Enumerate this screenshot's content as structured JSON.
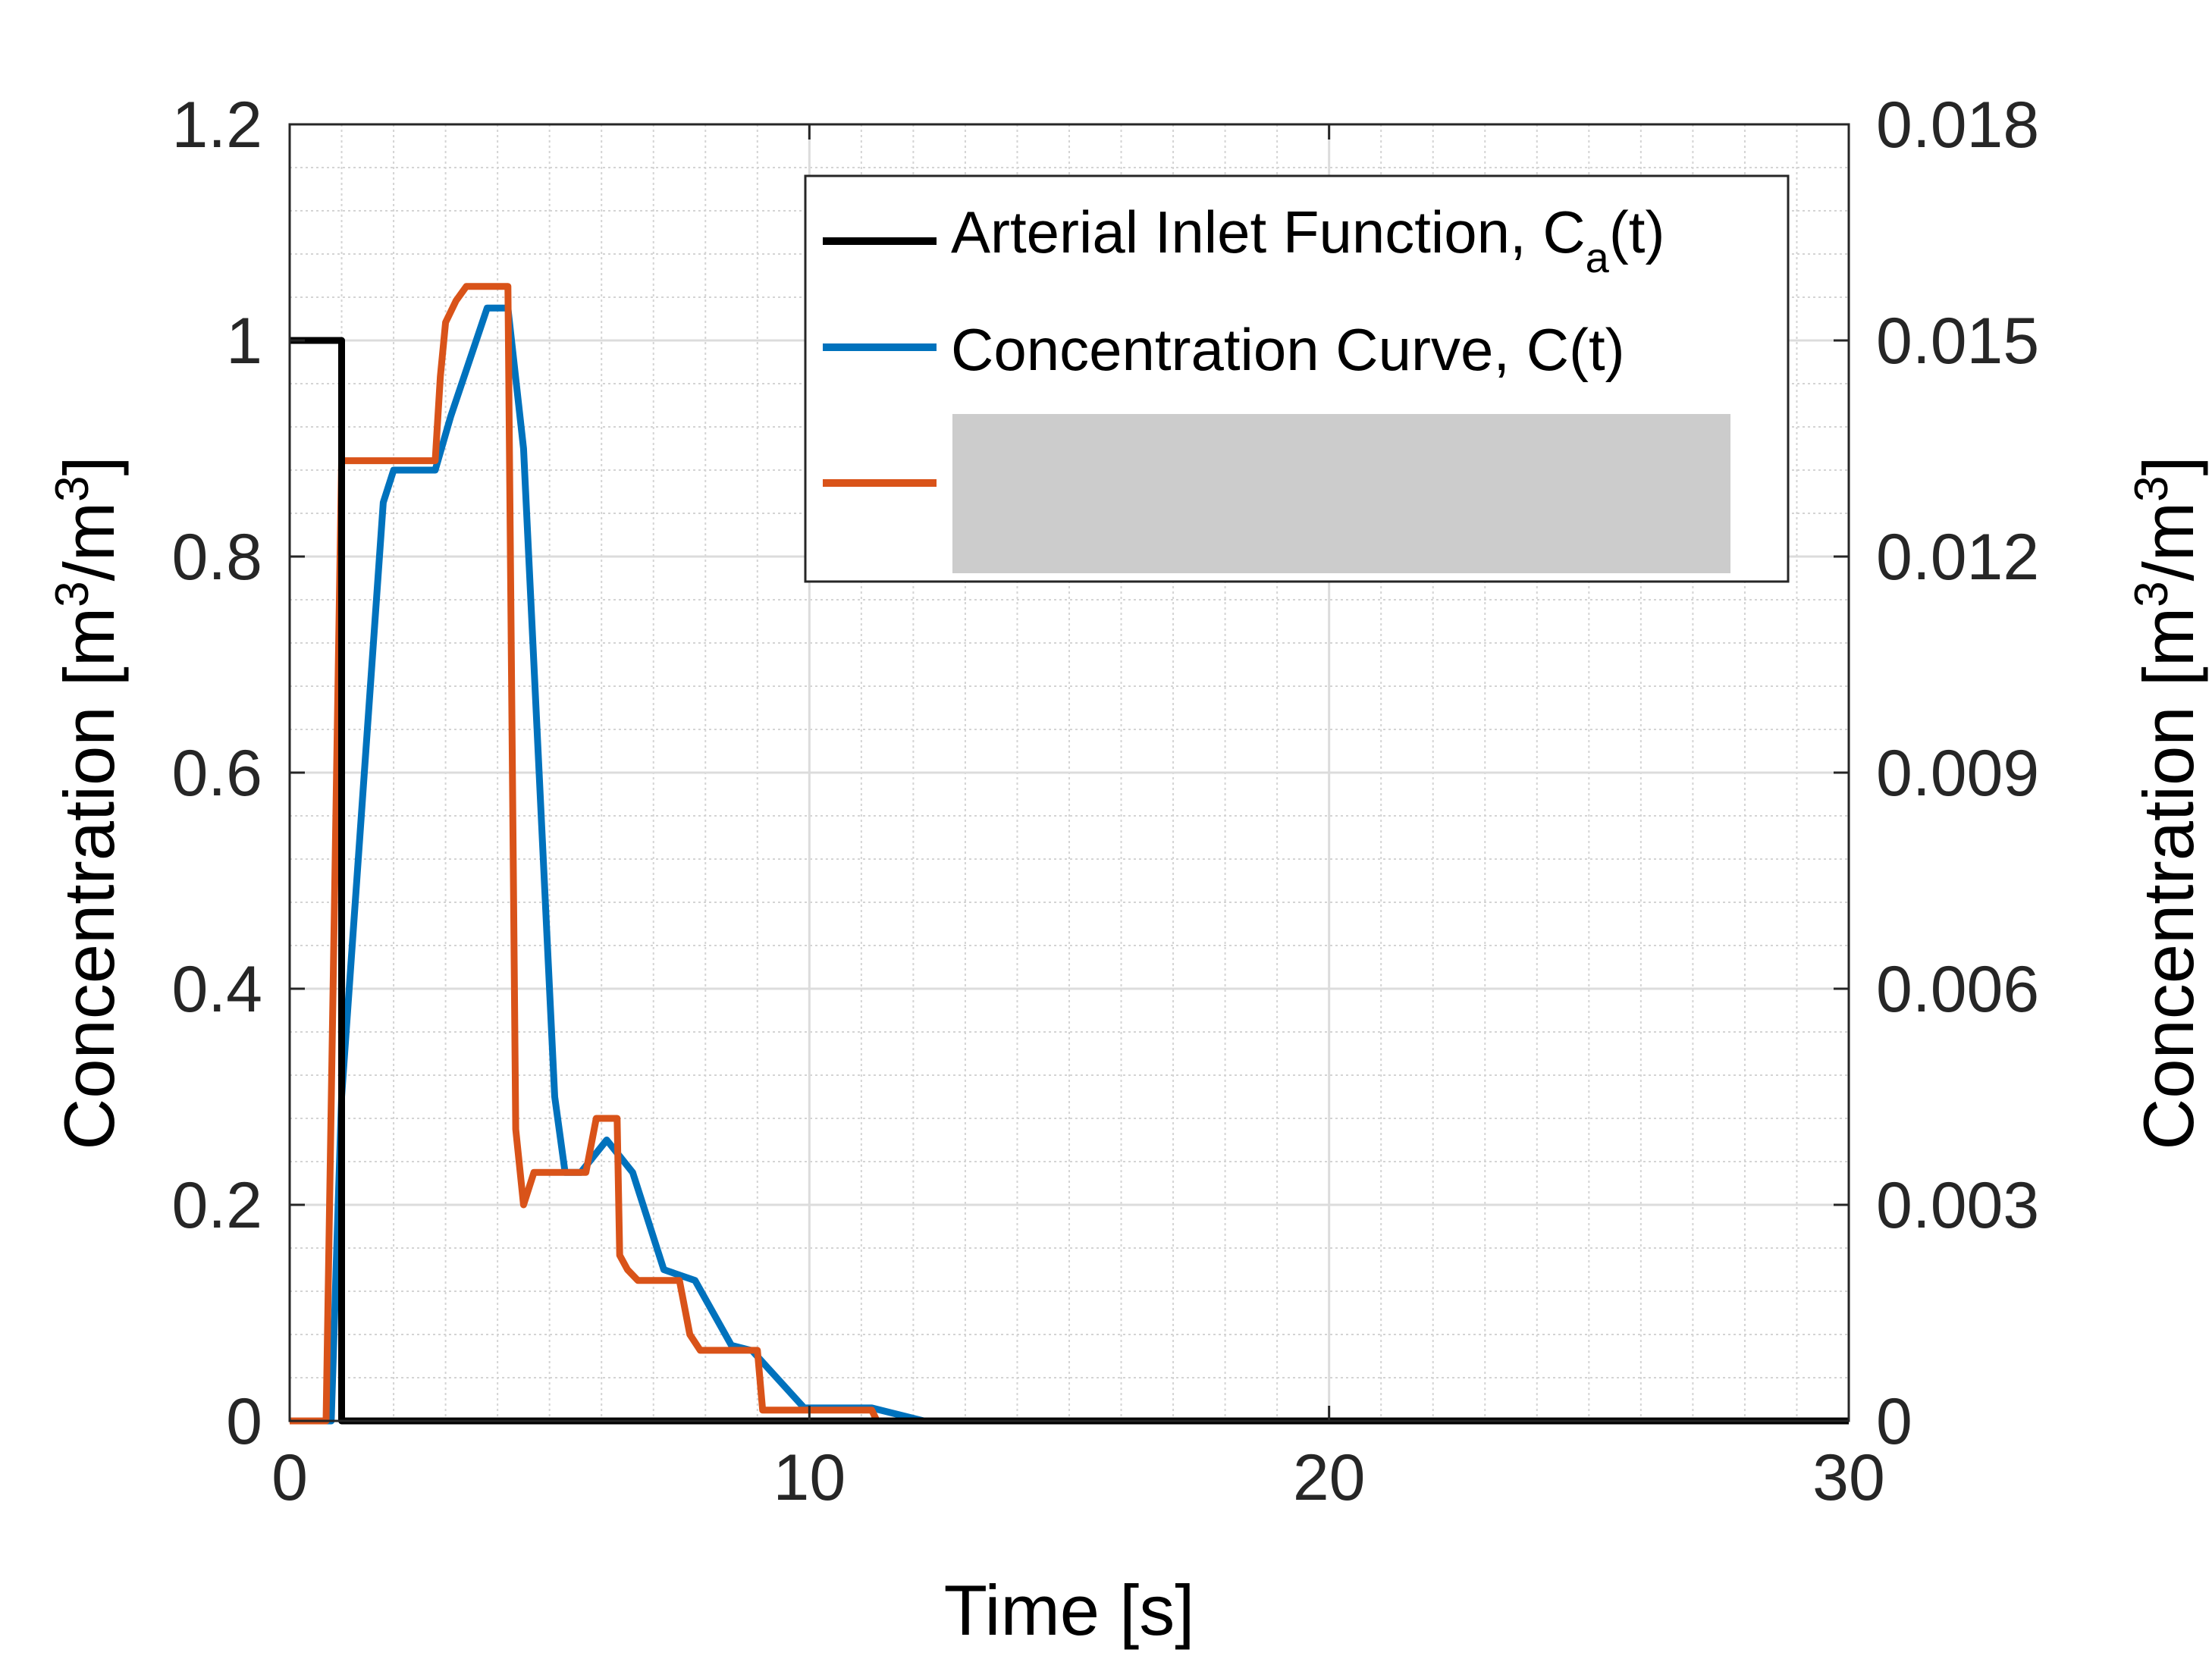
{
  "chart_data": {
    "type": "line",
    "xlabel": "Time [s]",
    "ylabel_left": {
      "text": "Concentration [m",
      "sup1": "3",
      "mid": "/m",
      "sup2": "3",
      "end": "]"
    },
    "ylabel_right": {
      "text": "Concentration [m",
      "sup1": "3",
      "mid": "/m",
      "sup2": "3",
      "end": "]"
    },
    "xlim": [
      0,
      30
    ],
    "ylim_left": [
      0,
      1.2
    ],
    "ylim_right": [
      0,
      0.018
    ],
    "x_ticks": [
      0,
      10,
      20,
      30
    ],
    "x_tick_labels": [
      "0",
      "10",
      "20",
      "30"
    ],
    "y_left_ticks": [
      0,
      0.2,
      0.4,
      0.6,
      0.8,
      1.0,
      1.2
    ],
    "y_left_tick_labels": [
      "0",
      "0.2",
      "0.4",
      "0.6",
      "0.8",
      "1",
      "1.2"
    ],
    "y_right_ticks": [
      0,
      0.003,
      0.006,
      0.009,
      0.012,
      0.015,
      0.018
    ],
    "y_right_tick_labels": [
      "0",
      "0.003",
      "0.006",
      "0.009",
      "0.012",
      "0.015",
      "0.018"
    ],
    "grid": true,
    "minor_grid": true,
    "legend_position": "top-right",
    "series": [
      {
        "name": "Arterial Inlet Function, C",
        "name_sub": "a",
        "name_end": "(t)",
        "axis": "left",
        "color": "#000000",
        "x": [
          0,
          1.0,
          1.0,
          30
        ],
        "y": [
          1.0,
          1.0,
          0,
          0
        ]
      },
      {
        "name": "Concentration Curve, C(t)",
        "axis": "left",
        "color": "#0072BD",
        "x": [
          0,
          0.8,
          1.0,
          1.8,
          2.0,
          2.8,
          3.1,
          3.8,
          4.2,
          4.5,
          5.1,
          5.3,
          5.6,
          6.1,
          6.6,
          7.2,
          7.8,
          8.5,
          8.9,
          9.9,
          11.2,
          12.2,
          30
        ],
        "y": [
          0,
          0,
          0.3,
          0.85,
          0.88,
          0.88,
          0.93,
          1.03,
          1.03,
          0.9,
          0.3,
          0.23,
          0.23,
          0.26,
          0.23,
          0.14,
          0.13,
          0.07,
          0.065,
          0.012,
          0.012,
          0,
          0
        ]
      },
      {
        "axis": "right",
        "color": "#D95319",
        "x": [
          0,
          0.7,
          1.0,
          2.8,
          2.9,
          3.0,
          3.2,
          3.4,
          4.2,
          4.35,
          4.5,
          4.7,
          5.7,
          5.9,
          6.3,
          6.35,
          6.5,
          6.7,
          7.5,
          7.7,
          7.9,
          9.0,
          9.1,
          11.2,
          11.3,
          30
        ],
        "y": [
          0,
          0,
          0.01333,
          0.01333,
          0.0145,
          0.01525,
          0.01555,
          0.01575,
          0.01575,
          0.00405,
          0.003,
          0.00345,
          0.00345,
          0.0042,
          0.0042,
          0.0023,
          0.0021,
          0.00195,
          0.00195,
          0.0012,
          0.00098,
          0.00098,
          0.00015,
          0.00015,
          0,
          0
        ]
      }
    ],
    "legend_hidden_box_color": "#cccccc"
  }
}
